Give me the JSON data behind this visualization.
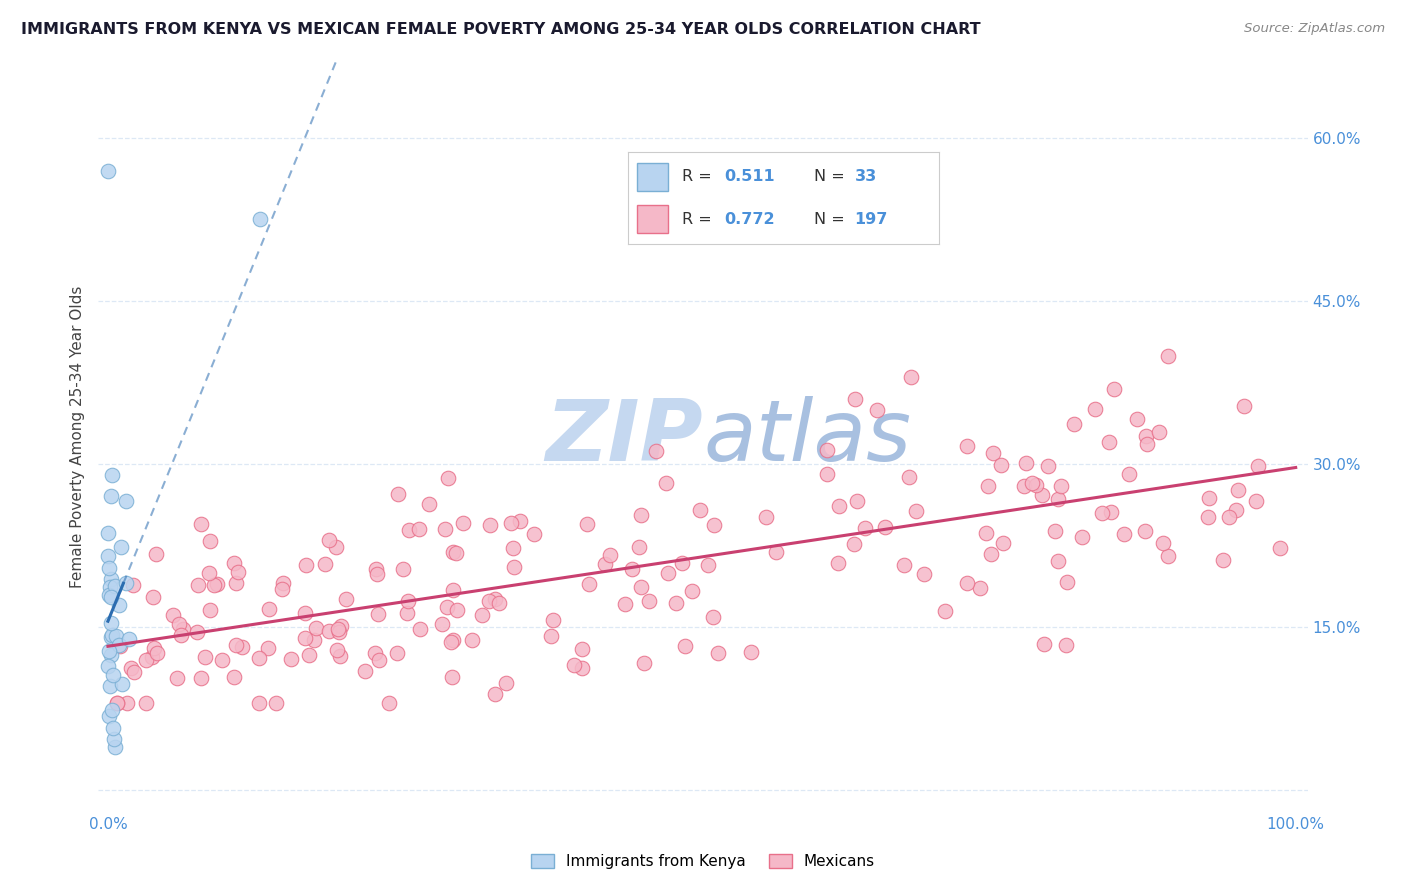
{
  "title": "IMMIGRANTS FROM KENYA VS MEXICAN FEMALE POVERTY AMONG 25-34 YEAR OLDS CORRELATION CHART",
  "source": "Source: ZipAtlas.com",
  "ylabel": "Female Poverty Among 25-34 Year Olds",
  "kenya_color": "#b8d4f0",
  "kenya_edge": "#7aafd4",
  "mexico_color": "#f5b8c8",
  "mexico_edge": "#e8708a",
  "kenya_line_color": "#2b6cb0",
  "mexico_line_color": "#c94070",
  "watermark_zip_color": "#c5d8f0",
  "watermark_atlas_color": "#a8c0e0",
  "axis_color": "#4a90d9",
  "grid_color": "#dde8f5",
  "title_color": "#1a1a2e",
  "source_color": "#888888",
  "ylabel_color": "#444444"
}
